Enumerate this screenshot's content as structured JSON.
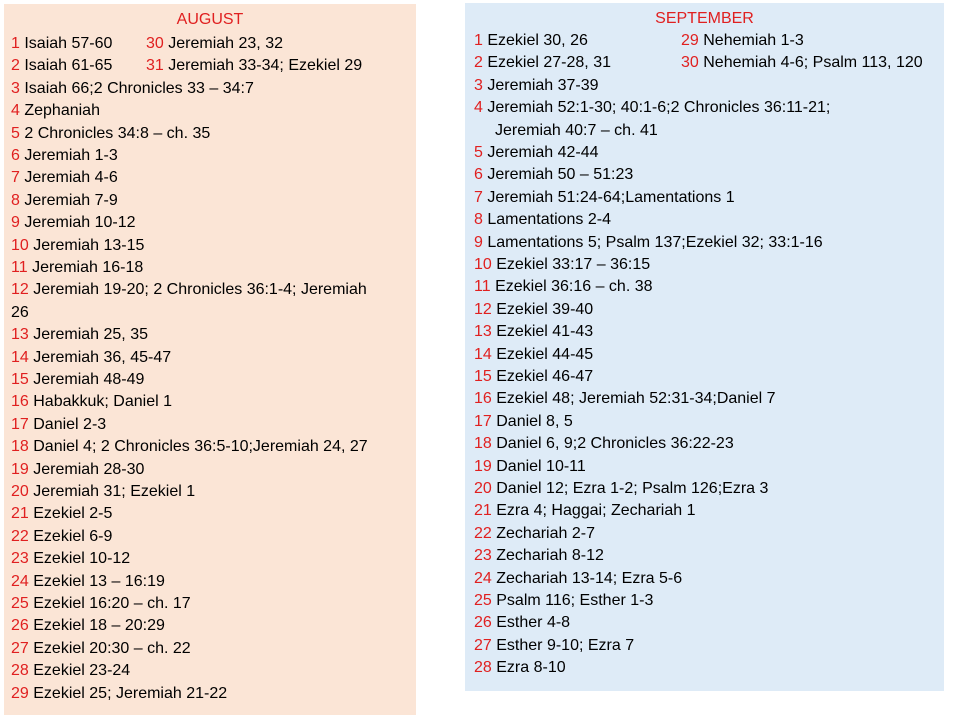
{
  "august": {
    "title": "AUGUST",
    "entries": [
      {
        "day": "1",
        "reading": "Isaiah 57-60"
      },
      {
        "day": "2",
        "reading": "Isaiah 61-65"
      },
      {
        "day": "3",
        "reading": "Isaiah 66;2 Chronicles 33 – 34:7"
      },
      {
        "day": "4",
        "reading": "Zephaniah"
      },
      {
        "day": "5",
        "reading": "2 Chronicles 34:8 – ch. 35"
      },
      {
        "day": "6",
        "reading": "Jeremiah 1-3"
      },
      {
        "day": "7",
        "reading": "Jeremiah 4-6"
      },
      {
        "day": "8",
        "reading": "Jeremiah 7-9"
      },
      {
        "day": "9",
        "reading": "Jeremiah 10-12"
      },
      {
        "day": "10",
        "reading": "Jeremiah 13-15"
      },
      {
        "day": "11",
        "reading": "Jeremiah 16-18"
      },
      {
        "day": "12",
        "reading": "Jeremiah 19-20; 2 Chronicles 36:1-4; Jeremiah",
        "continued": "26"
      },
      {
        "day": "13",
        "reading": "Jeremiah 25, 35"
      },
      {
        "day": "14",
        "reading": "Jeremiah 36, 45-47"
      },
      {
        "day": "15",
        "reading": "Jeremiah 48-49"
      },
      {
        "day": "16",
        "reading": "Habakkuk; Daniel 1"
      },
      {
        "day": "17",
        "reading": "Daniel 2-3"
      },
      {
        "day": "18",
        "reading": "Daniel 4; 2 Chronicles 36:5-10;Jeremiah 24, 27"
      },
      {
        "day": "19",
        "reading": "Jeremiah 28-30"
      },
      {
        "day": "20",
        "reading": "Jeremiah 31; Ezekiel 1"
      },
      {
        "day": "21",
        "reading": "Ezekiel 2-5"
      },
      {
        "day": "22",
        "reading": "Ezekiel 6-9"
      },
      {
        "day": "23",
        "reading": "Ezekiel 10-12"
      },
      {
        "day": "24",
        "reading": "Ezekiel 13 – 16:19"
      },
      {
        "day": "25",
        "reading": "Ezekiel 16:20 – ch. 17"
      },
      {
        "day": "26",
        "reading": "Ezekiel 18 – 20:29"
      },
      {
        "day": "27",
        "reading": "Ezekiel 20:30 – ch. 22"
      },
      {
        "day": "28",
        "reading": "Ezekiel 23-24"
      },
      {
        "day": "29",
        "reading": "Ezekiel 25; Jeremiah 21-22"
      }
    ],
    "side_entries": [
      {
        "day": "30",
        "reading": "Jeremiah 23, 32"
      },
      {
        "day": "31",
        "reading": "Jeremiah 33-34; Ezekiel 29"
      }
    ]
  },
  "september": {
    "title": "SEPTEMBER",
    "entries": [
      {
        "day": "1",
        "reading": "Ezekiel 30, 26"
      },
      {
        "day": "2",
        "reading": "Ezekiel 27-28, 31"
      },
      {
        "day": "3",
        "reading": "Jeremiah 37-39"
      },
      {
        "day": "4",
        "reading": "Jeremiah 52:1-30; 40:1-6;2 Chronicles 36:11-21;",
        "continued": "Jeremiah 40:7 – ch. 41"
      },
      {
        "day": "5",
        "reading": "Jeremiah 42-44"
      },
      {
        "day": "6",
        "reading": "Jeremiah 50 – 51:23"
      },
      {
        "day": "7",
        "reading": "Jeremiah 51:24-64;Lamentations 1"
      },
      {
        "day": "8",
        "reading": "Lamentations 2-4"
      },
      {
        "day": "9",
        "reading": "Lamentations 5; Psalm 137;Ezekiel 32; 33:1-16"
      },
      {
        "day": "10",
        "reading": "Ezekiel 33:17 – 36:15"
      },
      {
        "day": "11",
        "reading": "Ezekiel 36:16 – ch. 38"
      },
      {
        "day": "12",
        "reading": "Ezekiel 39-40"
      },
      {
        "day": "13",
        "reading": "Ezekiel 41-43"
      },
      {
        "day": "14",
        "reading": "Ezekiel 44-45"
      },
      {
        "day": "15",
        "reading": "Ezekiel 46-47"
      },
      {
        "day": "16",
        "reading": "Ezekiel 48; Jeremiah 52:31-34;Daniel 7"
      },
      {
        "day": "17",
        "reading": "Daniel 8, 5"
      },
      {
        "day": "18",
        "reading": "Daniel 6, 9;2 Chronicles 36:22-23"
      },
      {
        "day": "19",
        "reading": "Daniel 10-11"
      },
      {
        "day": "20",
        "reading": "Daniel 12; Ezra 1-2; Psalm 126;Ezra 3"
      },
      {
        "day": "21",
        "reading": "Ezra 4; Haggai; Zechariah 1"
      },
      {
        "day": "22",
        "reading": "Zechariah 2-7"
      },
      {
        "day": "23",
        "reading": "Zechariah 8-12"
      },
      {
        "day": "24",
        "reading": "Zechariah 13-14; Ezra 5-6"
      },
      {
        "day": "25",
        "reading": "Psalm 116; Esther 1-3"
      },
      {
        "day": "26",
        "reading": "Esther 4-8"
      },
      {
        "day": "27",
        "reading": "Esther 9-10; Ezra 7"
      },
      {
        "day": "28",
        "reading": "Ezra 8-10"
      }
    ],
    "side_entries": [
      {
        "day": "29",
        "reading": "Nehemiah 1-3"
      },
      {
        "day": "30",
        "reading": "Nehemiah 4-6; Psalm 113, 120"
      }
    ]
  },
  "colors": {
    "day_number": "#e02020",
    "august_bg": "#fbe5d6",
    "september_bg": "#deebf7"
  }
}
